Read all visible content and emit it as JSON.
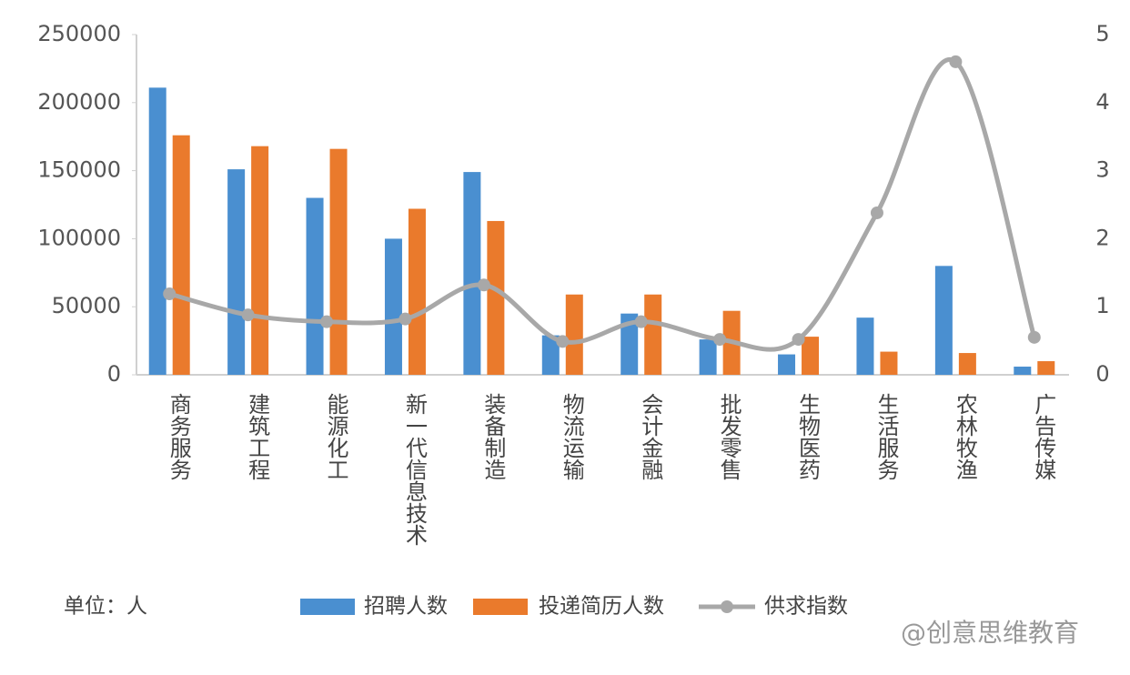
{
  "chart_data": {
    "type": "bar",
    "categories": [
      "商务服务",
      "建筑工程",
      "能源化工",
      "新一代信息技术",
      "装备制造",
      "物流运输",
      "会计金融",
      "批发零售",
      "生物医药",
      "生活服务",
      "农林牧渔",
      "广告传媒"
    ],
    "series": [
      {
        "name": "招聘人数",
        "type": "bar",
        "color": "#4a8fd0",
        "values": [
          211000,
          151000,
          130000,
          100000,
          149000,
          29000,
          45000,
          26000,
          15000,
          42000,
          80000,
          6000
        ]
      },
      {
        "name": "投递简历人数",
        "type": "bar",
        "color": "#ea7a2c",
        "values": [
          176000,
          168000,
          166000,
          122000,
          113000,
          59000,
          59000,
          47000,
          28000,
          17000,
          16000,
          10000
        ]
      },
      {
        "name": "供求指数",
        "type": "line",
        "axis": "y2",
        "color": "#a8a8a8",
        "values": [
          1.19,
          0.88,
          0.78,
          0.82,
          1.32,
          0.49,
          0.78,
          0.52,
          0.52,
          2.38,
          4.6,
          0.55
        ]
      }
    ],
    "ylim": [
      0,
      250000
    ],
    "yticks": [
      0,
      50000,
      100000,
      150000,
      200000,
      250000
    ],
    "y2lim": [
      0,
      5
    ],
    "y2ticks": [
      0,
      1,
      2,
      3,
      4,
      5
    ],
    "annotations": [
      "单位：人",
      "@创意思维教育"
    ],
    "legend": "bottom"
  }
}
